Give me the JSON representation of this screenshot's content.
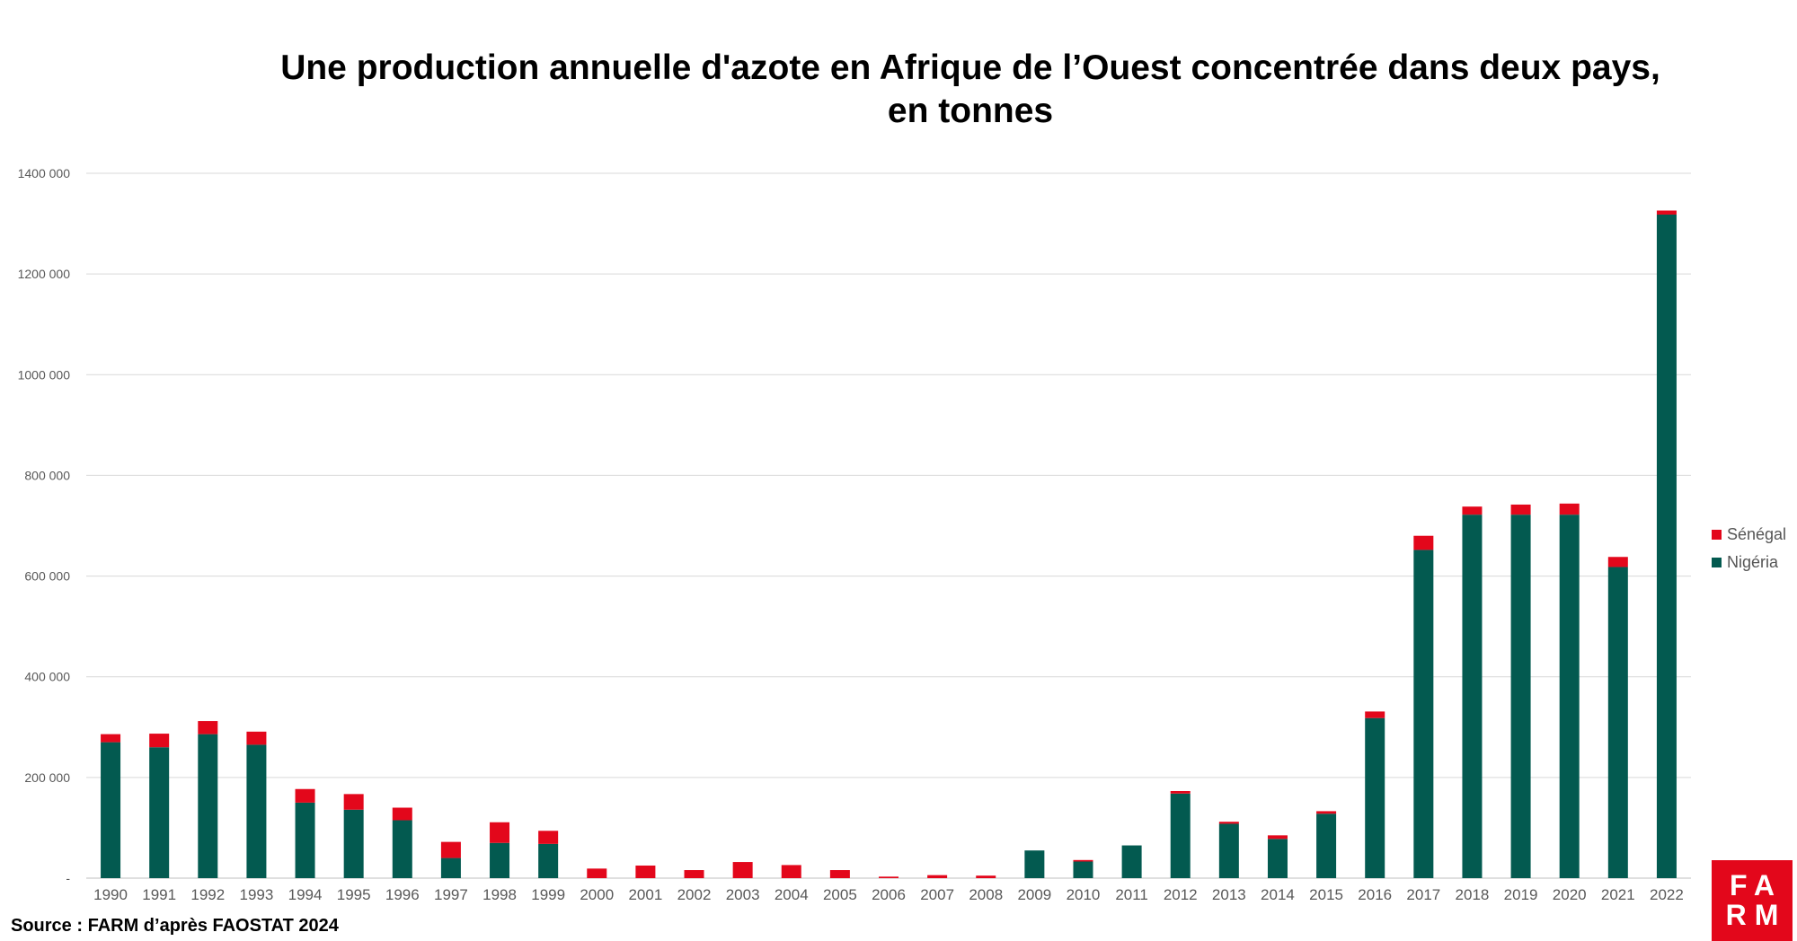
{
  "chart_data": {
    "type": "bar",
    "stacked": true,
    "title": "Une production annuelle d'azote en Afrique de l’Ouest concentrée dans deux pays,",
    "subtitle": "en tonnes",
    "categories": [
      "1990",
      "1991",
      "1992",
      "1993",
      "1994",
      "1995",
      "1996",
      "1997",
      "1998",
      "1999",
      "2000",
      "2001",
      "2002",
      "2003",
      "2004",
      "2005",
      "2006",
      "2007",
      "2008",
      "2009",
      "2010",
      "2011",
      "2012",
      "2013",
      "2014",
      "2015",
      "2016",
      "2017",
      "2018",
      "2019",
      "2020",
      "2021",
      "2022"
    ],
    "series": [
      {
        "name": "Nigéria",
        "color": "#035a50",
        "values": [
          270000,
          260000,
          286000,
          265000,
          150000,
          136000,
          115000,
          40000,
          70000,
          68000,
          0,
          0,
          0,
          0,
          0,
          0,
          0,
          0,
          0,
          55000,
          33000,
          65000,
          168000,
          108000,
          78000,
          128000,
          318000,
          652000,
          722000,
          722000,
          722000,
          618000,
          1318000
        ]
      },
      {
        "name": "Sénégal",
        "color": "#e3071b",
        "values": [
          16000,
          27000,
          26000,
          26000,
          27000,
          31000,
          25000,
          32000,
          41000,
          26000,
          19000,
          25000,
          16000,
          32000,
          26000,
          16000,
          3000,
          6000,
          5000,
          0,
          3000,
          0,
          5000,
          4000,
          7000,
          5000,
          13000,
          28000,
          16000,
          20000,
          22000,
          20000,
          8000
        ]
      }
    ],
    "yticks": [
      "-",
      "200 000",
      "400 000",
      "600 000",
      "800 000",
      "1000 000",
      "1200 000",
      "1400 000"
    ],
    "ylim": [
      0,
      1400000
    ],
    "grid": true,
    "legend_position": "right"
  },
  "source": "Source : FARM d’après FAOSTAT 2024",
  "logo": {
    "line1": "FA",
    "line2": "RM"
  }
}
